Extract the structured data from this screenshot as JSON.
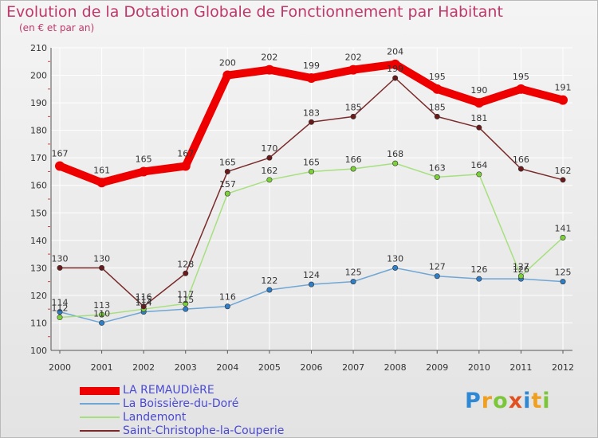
{
  "header": {
    "title": "Evolution de la Dotation Globale de Fonctionnement par Habitant",
    "subtitle": "(en € et par an)"
  },
  "brand": {
    "letters": [
      "P",
      "r",
      "o",
      "x",
      "i",
      "t",
      "i"
    ],
    "colors": [
      "#2f88d4",
      "#f0a020",
      "#7cc63a",
      "#e05020",
      "#2f88d4",
      "#f0a020",
      "#7cc63a"
    ]
  },
  "colors": {
    "title": "#c0376a",
    "axis": "#555555",
    "grid": "#ffffff",
    "legend_text": "#4a4ad4"
  },
  "chart_data": {
    "type": "line",
    "x": [
      "2000",
      "2001",
      "2002",
      "2003",
      "2004",
      "2005",
      "2006",
      "2007",
      "2008",
      "2009",
      "2010",
      "2011",
      "2012"
    ],
    "ylim": [
      100,
      210
    ],
    "yticks": [
      "100",
      "110",
      "120",
      "130",
      "140",
      "150",
      "160",
      "170",
      "180",
      "190",
      "200",
      "210"
    ],
    "grid": true,
    "legend_position": "bottom-left",
    "series": [
      {
        "name": "LA REMAUDIèRE",
        "color": "#ee0000",
        "marker": "#ee0000",
        "values": [
          167,
          161,
          165,
          167,
          200,
          202,
          199,
          202,
          204,
          195,
          190,
          195,
          191
        ],
        "labels": [
          "167",
          "161",
          "165",
          "167",
          "200",
          "202",
          "199",
          "202",
          "204",
          "195",
          "190",
          "195",
          "191"
        ]
      },
      {
        "name": "La Boissière-du-Doré",
        "color": "#6fa6d6",
        "marker": "#2f7fc8",
        "values": [
          114,
          110,
          114,
          115,
          116,
          122,
          124,
          125,
          130,
          127,
          126,
          126,
          125
        ],
        "labels": [
          "114",
          "110",
          "114",
          "115",
          "116",
          "122",
          "124",
          "125",
          "130",
          "127",
          "126",
          "126",
          "125"
        ]
      },
      {
        "name": "Landemont",
        "color": "#a6e07e",
        "marker": "#7cd03a",
        "values": [
          112,
          113,
          115,
          117,
          157,
          162,
          165,
          166,
          168,
          163,
          164,
          127,
          141
        ],
        "labels": [
          "112",
          "113",
          "115",
          "117",
          "157",
          "162",
          "165",
          "166",
          "168",
          "163",
          "164",
          "127",
          "141"
        ]
      },
      {
        "name": "Saint-Christophe-la-Couperie",
        "color": "#7a2a2a",
        "marker": "#6a1a1a",
        "values": [
          130,
          130,
          116,
          128,
          165,
          170,
          183,
          185,
          199,
          185,
          181,
          166,
          162
        ],
        "labels": [
          "130",
          "130",
          "116",
          "128",
          "165",
          "170",
          "183",
          "185",
          "199",
          "185",
          "181",
          "166",
          "162"
        ]
      }
    ]
  }
}
